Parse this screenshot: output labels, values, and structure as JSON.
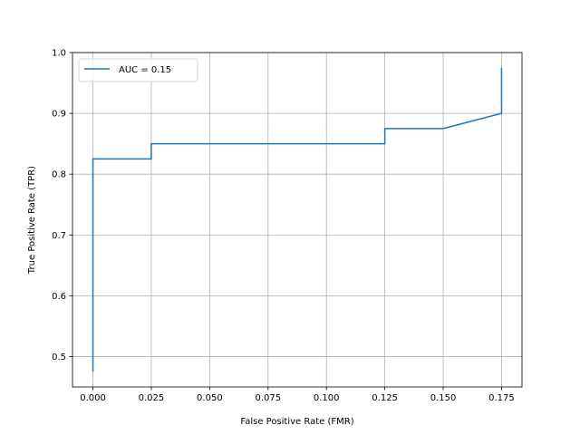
{
  "chart_data": {
    "type": "line",
    "title": "",
    "xlabel": "False Positive Rate (FMR)",
    "ylabel": "True Positive Rate (TPR)",
    "xlim": [
      -0.00875,
      0.18375
    ],
    "ylim": [
      0.45,
      1.0
    ],
    "xticks": [
      0.0,
      0.025,
      0.05,
      0.075,
      0.1,
      0.125,
      0.15,
      0.175
    ],
    "xtick_labels": [
      "0.000",
      "0.025",
      "0.050",
      "0.075",
      "0.100",
      "0.125",
      "0.150",
      "0.175"
    ],
    "yticks": [
      0.5,
      0.6,
      0.7,
      0.8,
      0.9,
      1.0
    ],
    "ytick_labels": [
      "0.5",
      "0.6",
      "0.7",
      "0.8",
      "0.9",
      "1.0"
    ],
    "grid": true,
    "legend_position": "top-left",
    "series": [
      {
        "name": "AUC = 0.15",
        "color": "#1f77b4",
        "x": [
          0.0,
          0.0,
          0.025,
          0.025,
          0.125,
          0.125,
          0.15,
          0.175,
          0.175
        ],
        "y": [
          0.475,
          0.825,
          0.825,
          0.85,
          0.85,
          0.875,
          0.875,
          0.9,
          0.975
        ]
      }
    ]
  }
}
